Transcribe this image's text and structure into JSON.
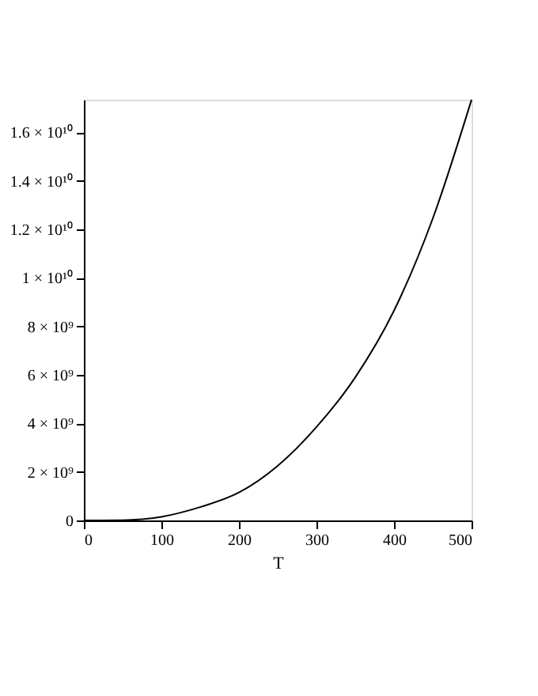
{
  "chart_data": {
    "type": "line",
    "xlabel": "T",
    "x": [
      0,
      50,
      75,
      100,
      150,
      200,
      250,
      300,
      350,
      400,
      450,
      500
    ],
    "series": [
      {
        "color": "#000000",
        "values": [
          0,
          10000000.0,
          50000000.0,
          150000000.0,
          550000000.0,
          1150000000.0,
          2250000000.0,
          3850000000.0,
          5900000000.0,
          8650000000.0,
          12450000000.0,
          17350000000.0
        ]
      }
    ],
    "xlim": [
      0,
      500
    ],
    "xticks": [
      0,
      100,
      200,
      300,
      400,
      500
    ],
    "ylim": [
      0,
      17350000000.0
    ],
    "yticks": [
      0,
      {
        "value": 2000000000.0,
        "label": "2 × 10⁹"
      },
      {
        "value": 4000000000.0,
        "label": "4 × 10⁹"
      },
      {
        "value": 6000000000.0,
        "label": "6 × 10⁹"
      },
      {
        "value": 8000000000.0,
        "label": "8 × 10⁹"
      },
      {
        "value": 10000000000.0,
        "label": "1 × 10¹⁰"
      },
      {
        "value": 12000000000.0,
        "label": "1.2 × 10¹⁰"
      },
      {
        "value": 14000000000.0,
        "label": "1.4 × 10¹⁰"
      },
      {
        "value": 16000000000.0,
        "label": "1.6 × 10¹⁰"
      }
    ],
    "grid": false
  }
}
